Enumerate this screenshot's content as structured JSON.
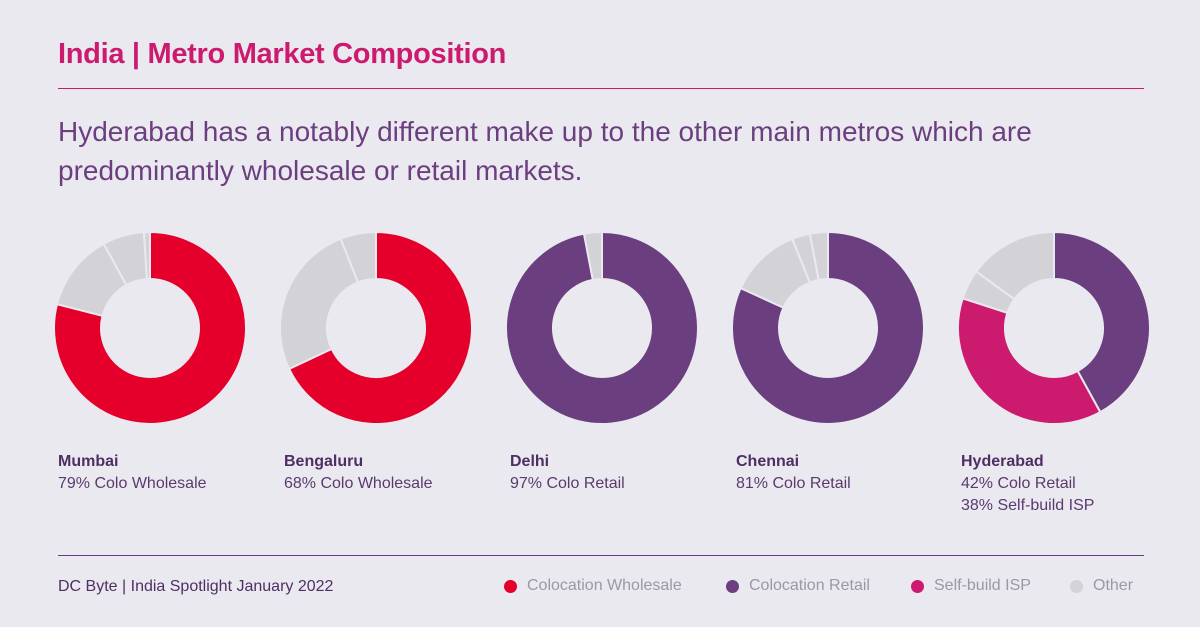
{
  "title": "India | Metro Market Composition",
  "subtitle": "Hyderabad has a notably different make up to the other main metros which are predominantly wholesale or retail markets.",
  "source": "DC Byte | India Spotlight January 2022",
  "colors": {
    "Colocation Wholesale": "#e4002b",
    "Colocation Retail": "#6b3f7f",
    "Self-build ISP": "#cc1a6e",
    "Other": "#d3d2d6"
  },
  "legend": [
    {
      "label": "Colocation Wholesale",
      "color": "#e4002b"
    },
    {
      "label": "Colocation Retail",
      "color": "#6b3f7f"
    },
    {
      "label": "Self-build ISP",
      "color": "#cc1a6e"
    },
    {
      "label": "Other",
      "color": "#d3d2d6"
    }
  ],
  "chart_data": [
    {
      "type": "pie",
      "title": "Mumbai",
      "caption": [
        "79% Colo Wholesale"
      ],
      "slices": [
        {
          "label": "Colocation Wholesale",
          "value": 79
        },
        {
          "label": "Other",
          "value": 13
        },
        {
          "label": "Other",
          "value": 7
        },
        {
          "label": "Other",
          "value": 1
        }
      ]
    },
    {
      "type": "pie",
      "title": "Bengaluru",
      "caption": [
        "68% Colo Wholesale"
      ],
      "slices": [
        {
          "label": "Colocation Wholesale",
          "value": 68
        },
        {
          "label": "Other",
          "value": 26
        },
        {
          "label": "Other",
          "value": 6
        }
      ]
    },
    {
      "type": "pie",
      "title": "Delhi",
      "caption": [
        "97% Colo Retail"
      ],
      "slices": [
        {
          "label": "Colocation Retail",
          "value": 97
        },
        {
          "label": "Other",
          "value": 3
        }
      ]
    },
    {
      "type": "pie",
      "title": "Chennai",
      "caption": [
        "81% Colo Retail"
      ],
      "slices": [
        {
          "label": "Colocation Retail",
          "value": 81
        },
        {
          "label": "Other",
          "value": 12
        },
        {
          "label": "Other",
          "value": 3
        },
        {
          "label": "Other",
          "value": 3
        }
      ]
    },
    {
      "type": "pie",
      "title": "Hyderabad",
      "caption": [
        "42% Colo Retail",
        "38% Self-build ISP"
      ],
      "slices": [
        {
          "label": "Colocation Retail",
          "value": 42
        },
        {
          "label": "Self-build ISP",
          "value": 38
        },
        {
          "label": "Other",
          "value": 5
        },
        {
          "label": "Other",
          "value": 15
        }
      ]
    }
  ]
}
